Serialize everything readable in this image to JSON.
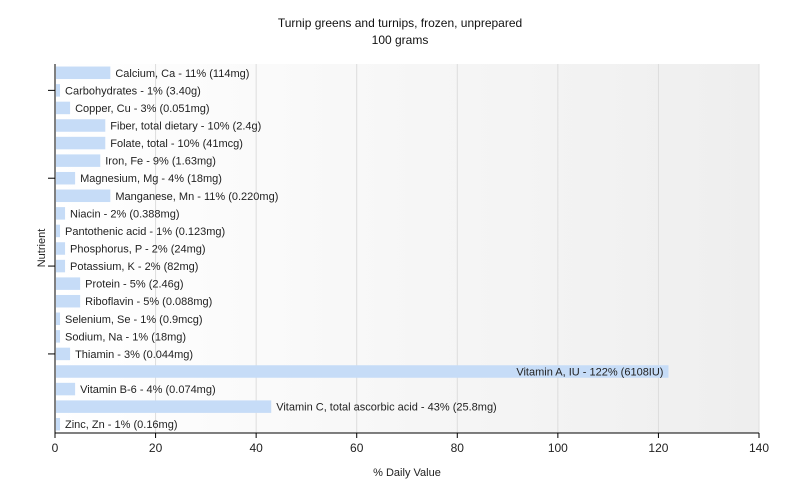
{
  "chart_data": {
    "type": "bar",
    "orientation": "horizontal",
    "title": "Turnip greens and turnips, frozen, unprepared",
    "subtitle": "100 grams",
    "xlabel": "% Daily Value",
    "ylabel": "Nutrient",
    "xlim": [
      0,
      140
    ],
    "xticks": [
      0,
      20,
      40,
      60,
      80,
      100,
      120,
      140
    ],
    "grid": true,
    "bar_color": "#c6dcf7",
    "plot_background_start": "#ffffff",
    "plot_background_end": "#eeeeee",
    "categories": [
      "Calcium, Ca",
      "Carbohydrates",
      "Copper, Cu",
      "Fiber, total dietary",
      "Folate, total",
      "Iron, Fe",
      "Magnesium, Mg",
      "Manganese, Mn",
      "Niacin",
      "Pantothenic acid",
      "Phosphorus, P",
      "Potassium, K",
      "Protein",
      "Riboflavin",
      "Selenium, Se",
      "Sodium, Na",
      "Thiamin",
      "Vitamin A, IU",
      "Vitamin B-6",
      "Vitamin C, total ascorbic acid",
      "Zinc, Zn"
    ],
    "values": [
      11,
      1,
      3,
      10,
      10,
      9,
      4,
      11,
      2,
      1,
      2,
      2,
      5,
      5,
      1,
      1,
      3,
      122,
      4,
      43,
      1
    ],
    "labels": [
      "Calcium, Ca - 11% (114mg)",
      "Carbohydrates - 1% (3.40g)",
      "Copper, Cu - 3% (0.051mg)",
      "Fiber, total dietary - 10% (2.4g)",
      "Folate, total - 10% (41mcg)",
      "Iron, Fe - 9% (1.63mg)",
      "Magnesium, Mg - 4% (18mg)",
      "Manganese, Mn - 11% (0.220mg)",
      "Niacin - 2% (0.388mg)",
      "Pantothenic acid - 1% (0.123mg)",
      "Phosphorus, P - 2% (24mg)",
      "Potassium, K - 2% (82mg)",
      "Protein - 5% (2.46g)",
      "Riboflavin - 5% (0.088mg)",
      "Selenium, Se - 1% (0.9mcg)",
      "Sodium, Na - 1% (18mg)",
      "Thiamin - 3% (0.044mg)",
      "Vitamin A, IU - 122% (6108IU)",
      "Vitamin B-6 - 4% (0.074mg)",
      "Vitamin C, total ascorbic acid - 43% (25.8mg)",
      "Zinc, Zn - 1% (0.16mg)"
    ]
  }
}
